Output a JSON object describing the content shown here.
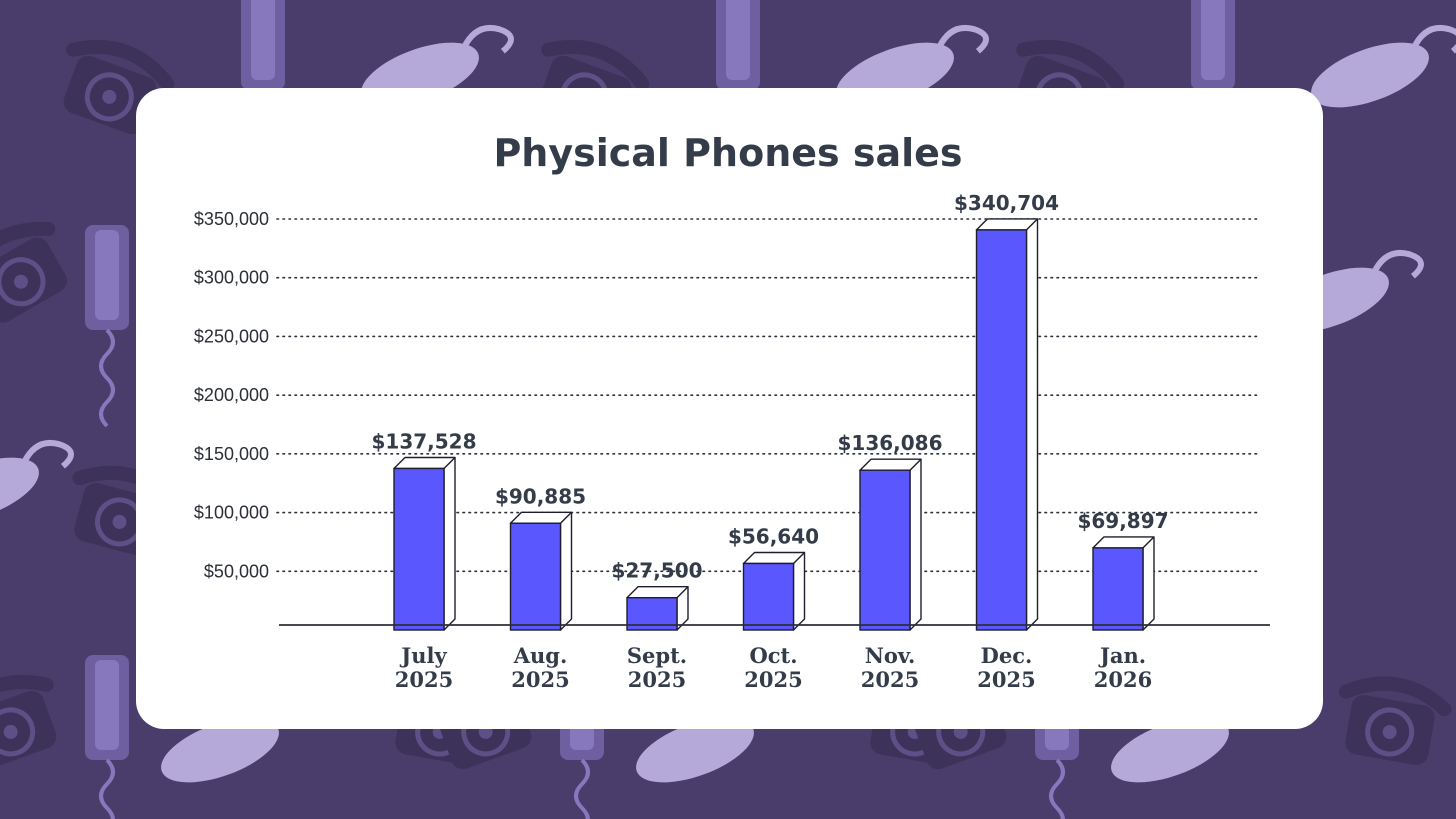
{
  "colors": {
    "background": "#4a3d6b",
    "background_pattern": "#5e4f86",
    "bar_fill": "#5b57ff",
    "bar_outline": "#1e1e2e",
    "text": "#343c4a"
  },
  "chart_data": {
    "type": "bar",
    "title": "Physical Phones sales",
    "categories": [
      [
        "July",
        "2025"
      ],
      [
        "Aug.",
        "2025"
      ],
      [
        "Sept.",
        "2025"
      ],
      [
        "Oct.",
        "2025"
      ],
      [
        "Nov.",
        "2025"
      ],
      [
        "Dec.",
        "2025"
      ],
      [
        "Jan.",
        "2026"
      ]
    ],
    "values": [
      137528,
      90885,
      27500,
      56640,
      136086,
      340704,
      69897
    ],
    "value_labels": [
      "$137,528",
      "$90,885",
      "$27,500",
      "$56,640",
      "$136,086",
      "$340,704",
      "$69,897"
    ],
    "yticks": [
      50000,
      100000,
      150000,
      200000,
      250000,
      300000,
      350000
    ],
    "ytick_labels": [
      "$50,000",
      "$100,000",
      "$150,000",
      "$200,000",
      "$250,000",
      "$300,000",
      "$350,000"
    ],
    "ylim": [
      0,
      350000
    ],
    "grid": "dotted horizontal",
    "legend": "none",
    "xlabel": "",
    "ylabel": ""
  }
}
